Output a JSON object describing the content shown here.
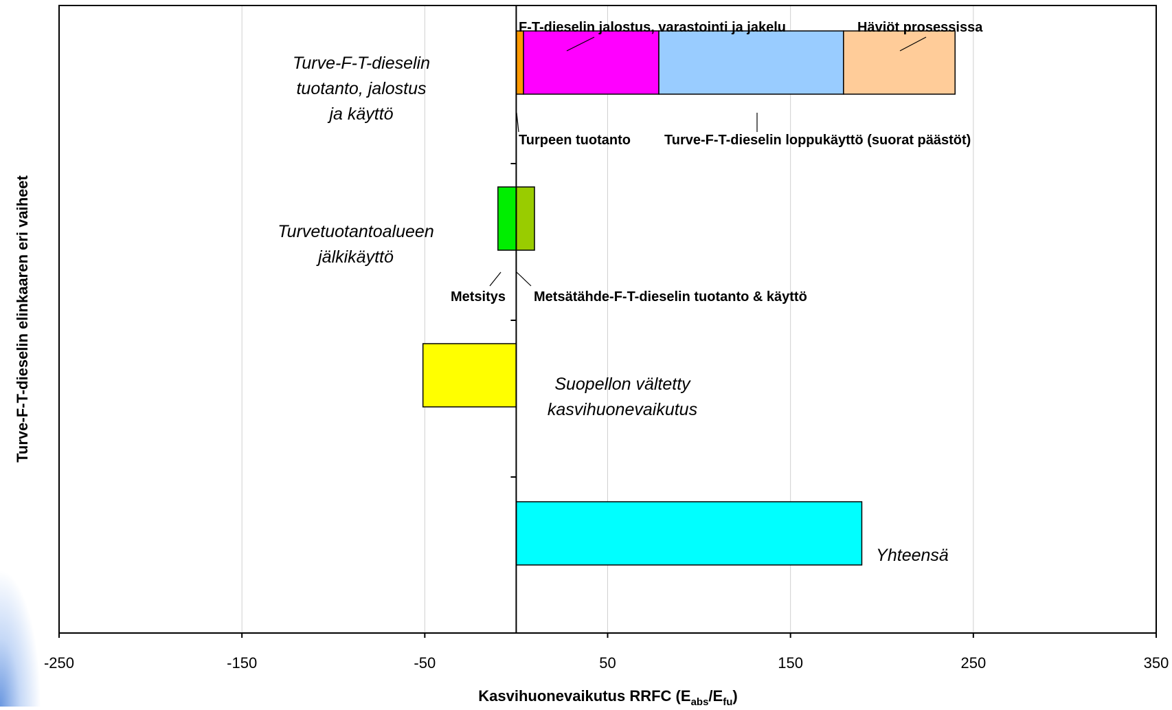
{
  "chart_data": {
    "type": "bar",
    "orientation": "horizontal-stacked",
    "title": "",
    "xlabel": {
      "main": "Kasvihuonevaikutus RRFC (E",
      "sub1": "abs",
      "mid": "/E",
      "sub2": "fu",
      "end": ")"
    },
    "ylabel": "Turve-F-T-dieselin elinkaaren eri vaiheet",
    "xlim": [
      -250,
      350
    ],
    "xticks": [
      -250,
      -150,
      -50,
      50,
      150,
      250,
      350
    ],
    "grid": "vertical",
    "rows": [
      {
        "label": [
          "Turve-F-T-dieselin",
          "tuotanto, jalostus",
          "ja käyttö"
        ],
        "segments": [
          {
            "name": "Turpeen tuotanto",
            "start": 0,
            "end": 4,
            "color": "#ff9900"
          },
          {
            "name": "F-T-dieselin jalostus, varastointi ja jakelu",
            "start": 4,
            "end": 78,
            "color": "#ff00ff"
          },
          {
            "name": "Turve-F-T-dieselin loppukäyttö (suorat päästöt)",
            "start": 78,
            "end": 179,
            "color": "#99ccff"
          },
          {
            "name": "Häviöt prosessissa",
            "start": 179,
            "end": 240,
            "color": "#ffcc99"
          }
        ]
      },
      {
        "label": [
          "Turvetuotantoalueen",
          "jälkikäyttö"
        ],
        "segments": [
          {
            "name": "Metsitys",
            "start": -10,
            "end": 0,
            "color": "#00ee00"
          },
          {
            "name": "Metsätähde-F-T-dieselin tuotanto & käyttö",
            "start": 0,
            "end": 10,
            "color": "#99cc00"
          }
        ]
      },
      {
        "label": [
          "Suopellon vältetty",
          "kasvihuonevaikutus"
        ],
        "segments": [
          {
            "name": "",
            "start": -51,
            "end": 0,
            "color": "#ffff00"
          }
        ]
      },
      {
        "label": [
          "Yhteensä"
        ],
        "segments": [
          {
            "name": "",
            "start": 0,
            "end": 189,
            "color": "#00ffff"
          }
        ]
      }
    ]
  }
}
